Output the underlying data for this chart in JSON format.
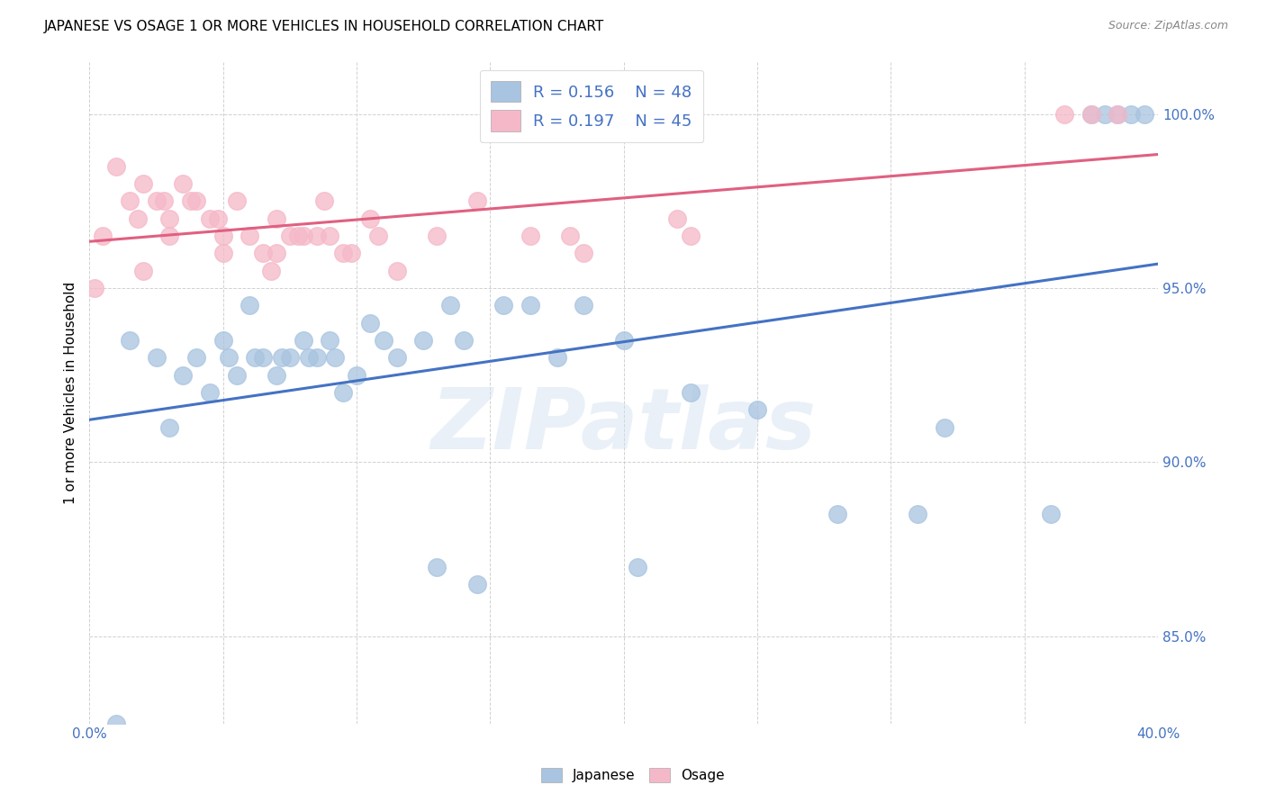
{
  "title": "JAPANESE VS OSAGE 1 OR MORE VEHICLES IN HOUSEHOLD CORRELATION CHART",
  "source": "Source: ZipAtlas.com",
  "ylabel": "1 or more Vehicles in Household",
  "R_japanese": "0.156",
  "N_japanese": "48",
  "R_osage": "0.197",
  "N_osage": "45",
  "japanese_color": "#a8c4e0",
  "osage_color": "#f5b8c8",
  "trendline_japanese_color": "#4472c4",
  "trendline_osage_color": "#e06080",
  "background_color": "#ffffff",
  "watermark": "ZIPatlas",
  "xlim": [
    0.0,
    40.0
  ],
  "ylim": [
    82.5,
    101.5
  ],
  "ytick_vals": [
    85.0,
    90.0,
    95.0,
    100.0
  ],
  "ytick_labels": [
    "85.0%",
    "90.0%",
    "95.0%",
    "100.0%"
  ],
  "legend_japanese": "Japanese",
  "legend_osage": "Osage",
  "japanese_x": [
    1.5,
    2.5,
    3.5,
    4.0,
    4.5,
    5.0,
    5.5,
    6.0,
    6.5,
    7.0,
    7.5,
    8.0,
    8.5,
    9.0,
    9.5,
    10.0,
    10.5,
    11.0,
    11.5,
    12.5,
    13.5,
    14.0,
    15.5,
    16.5,
    17.5,
    18.5,
    20.0,
    22.5,
    25.0,
    28.0,
    32.0,
    36.0,
    38.0,
    39.0,
    39.5,
    3.0,
    5.2,
    6.2,
    7.2,
    8.2,
    9.2,
    13.0,
    14.5,
    20.5,
    31.0,
    37.5,
    38.5,
    1.0
  ],
  "japanese_y": [
    93.5,
    93.0,
    92.5,
    93.0,
    92.0,
    93.5,
    92.5,
    94.5,
    93.0,
    92.5,
    93.0,
    93.5,
    93.0,
    93.5,
    92.0,
    92.5,
    94.0,
    93.5,
    93.0,
    93.5,
    94.5,
    93.5,
    94.5,
    94.5,
    93.0,
    94.5,
    93.5,
    92.0,
    91.5,
    88.5,
    91.0,
    88.5,
    100.0,
    100.0,
    100.0,
    91.0,
    93.0,
    93.0,
    93.0,
    93.0,
    93.0,
    87.0,
    86.5,
    87.0,
    88.5,
    100.0,
    100.0,
    82.5
  ],
  "osage_x": [
    0.5,
    1.0,
    1.5,
    2.0,
    2.5,
    3.0,
    3.5,
    4.0,
    4.5,
    5.0,
    5.5,
    6.0,
    6.5,
    7.0,
    7.5,
    8.0,
    8.5,
    9.0,
    9.5,
    10.5,
    11.5,
    13.0,
    14.5,
    16.5,
    18.5,
    22.0,
    36.5,
    37.5,
    38.5,
    1.8,
    2.8,
    3.8,
    4.8,
    6.8,
    7.8,
    8.8,
    9.8,
    10.8,
    2.0,
    3.0,
    5.0,
    7.0,
    18.0,
    22.5,
    0.2
  ],
  "osage_y": [
    96.5,
    98.5,
    97.5,
    98.0,
    97.5,
    97.0,
    98.0,
    97.5,
    97.0,
    96.5,
    97.5,
    96.5,
    96.0,
    97.0,
    96.5,
    96.5,
    96.5,
    96.5,
    96.0,
    97.0,
    95.5,
    96.5,
    97.5,
    96.5,
    96.0,
    97.0,
    100.0,
    100.0,
    100.0,
    97.0,
    97.5,
    97.5,
    97.0,
    95.5,
    96.5,
    97.5,
    96.0,
    96.5,
    95.5,
    96.5,
    96.0,
    96.0,
    96.5,
    96.5,
    95.0
  ]
}
